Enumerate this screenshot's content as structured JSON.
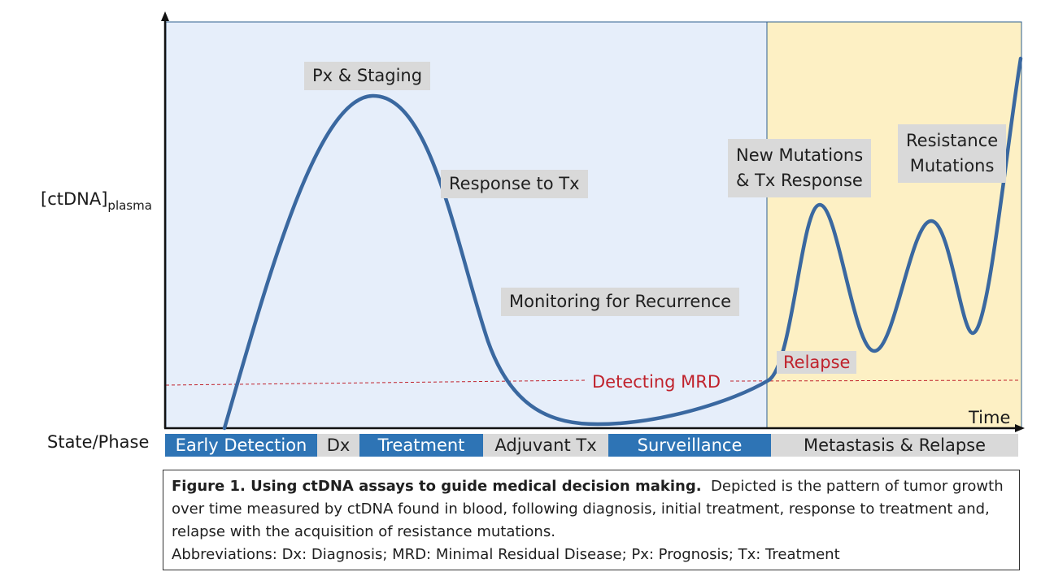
{
  "axes": {
    "y_label_main": "[ctDNA]",
    "y_label_sub": "plasma",
    "x_label": "Time"
  },
  "labels": {
    "px_staging": "Px & Staging",
    "response_tx": "Response to Tx",
    "monitoring": "Monitoring for Recurrence",
    "new_mutations_1": "New Mutations",
    "new_mutations_2": "& Tx Response",
    "resistance_1": "Resistance",
    "resistance_2": "Mutations",
    "relapse": "Relapse",
    "detecting_mrd": "Detecting MRD"
  },
  "state_phase": {
    "label": "State/Phase",
    "phases": [
      {
        "label": "Early Detection",
        "color": "blue"
      },
      {
        "label": "Dx",
        "color": "grey"
      },
      {
        "label": "Treatment",
        "color": "blue"
      },
      {
        "label": "Adjuvant Tx",
        "color": "grey"
      },
      {
        "label": "Surveillance",
        "color": "blue"
      },
      {
        "label": "Metastasis & Relapse",
        "color": "grey"
      }
    ]
  },
  "caption": {
    "title": "Figure 1.  Using ctDNA assays to guide medical decision making.",
    "body": "Depicted is the pattern of tumor growth over time measured by ctDNA found in blood, following diagnosis, initial treatment, response to treatment and, relapse with the acquisition of resistance mutations.",
    "abbreviations": "Abbreviations:  Dx: Diagnosis; MRD: Minimal Residual Disease;  Px: Prognosis; Tx: Treatment"
  },
  "colors": {
    "curve": "#3a68a0",
    "left_region": "#e6eefa",
    "right_region": "#fdf0c4",
    "mrd_line": "#c0222c",
    "phase_blue": "#2e74b5",
    "phase_grey": "#d9d9d9"
  }
}
